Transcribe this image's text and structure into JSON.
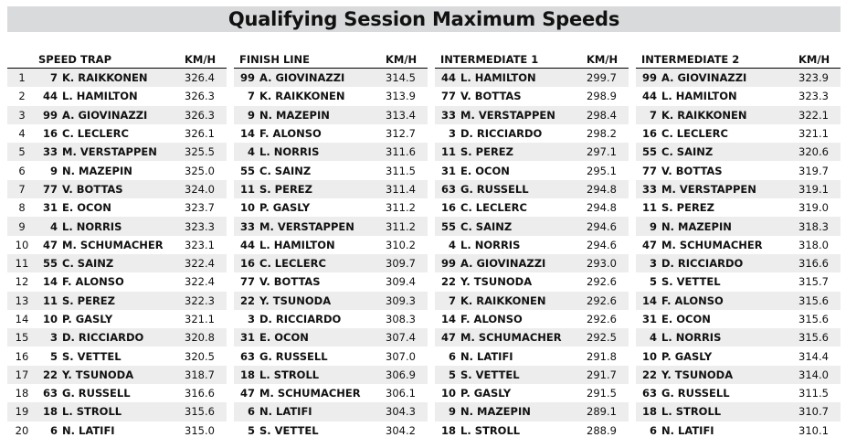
{
  "title": "Qualifying Session Maximum Speeds",
  "positions": [
    "1",
    "2",
    "3",
    "4",
    "5",
    "6",
    "7",
    "8",
    "9",
    "10",
    "11",
    "12",
    "13",
    "14",
    "15",
    "16",
    "17",
    "18",
    "19",
    "20"
  ],
  "sections": [
    {
      "label": "SPEED TRAP",
      "unit": "KM/H",
      "rows": [
        {
          "num": "7",
          "driver": "K. RAIKKONEN",
          "speed": "326.4"
        },
        {
          "num": "44",
          "driver": "L. HAMILTON",
          "speed": "326.3"
        },
        {
          "num": "99",
          "driver": "A. GIOVINAZZI",
          "speed": "326.3"
        },
        {
          "num": "16",
          "driver": "C. LECLERC",
          "speed": "326.1"
        },
        {
          "num": "33",
          "driver": "M. VERSTAPPEN",
          "speed": "325.5"
        },
        {
          "num": "9",
          "driver": "N. MAZEPIN",
          "speed": "325.0"
        },
        {
          "num": "77",
          "driver": "V. BOTTAS",
          "speed": "324.0"
        },
        {
          "num": "31",
          "driver": "E. OCON",
          "speed": "323.7"
        },
        {
          "num": "4",
          "driver": "L. NORRIS",
          "speed": "323.3"
        },
        {
          "num": "47",
          "driver": "M. SCHUMACHER",
          "speed": "323.1"
        },
        {
          "num": "55",
          "driver": "C. SAINZ",
          "speed": "322.4"
        },
        {
          "num": "14",
          "driver": "F. ALONSO",
          "speed": "322.4"
        },
        {
          "num": "11",
          "driver": "S. PEREZ",
          "speed": "322.3"
        },
        {
          "num": "10",
          "driver": "P. GASLY",
          "speed": "321.1"
        },
        {
          "num": "3",
          "driver": "D. RICCIARDO",
          "speed": "320.8"
        },
        {
          "num": "5",
          "driver": "S. VETTEL",
          "speed": "320.5"
        },
        {
          "num": "22",
          "driver": "Y. TSUNODA",
          "speed": "318.7"
        },
        {
          "num": "63",
          "driver": "G. RUSSELL",
          "speed": "316.6"
        },
        {
          "num": "18",
          "driver": "L. STROLL",
          "speed": "315.6"
        },
        {
          "num": "6",
          "driver": "N. LATIFI",
          "speed": "315.0"
        }
      ]
    },
    {
      "label": "FINISH LINE",
      "unit": "KM/H",
      "rows": [
        {
          "num": "99",
          "driver": "A. GIOVINAZZI",
          "speed": "314.5"
        },
        {
          "num": "7",
          "driver": "K. RAIKKONEN",
          "speed": "313.9"
        },
        {
          "num": "9",
          "driver": "N. MAZEPIN",
          "speed": "313.4"
        },
        {
          "num": "14",
          "driver": "F. ALONSO",
          "speed": "312.7"
        },
        {
          "num": "4",
          "driver": "L. NORRIS",
          "speed": "311.6"
        },
        {
          "num": "55",
          "driver": "C. SAINZ",
          "speed": "311.5"
        },
        {
          "num": "11",
          "driver": "S. PEREZ",
          "speed": "311.4"
        },
        {
          "num": "10",
          "driver": "P. GASLY",
          "speed": "311.2"
        },
        {
          "num": "33",
          "driver": "M. VERSTAPPEN",
          "speed": "311.2"
        },
        {
          "num": "44",
          "driver": "L. HAMILTON",
          "speed": "310.2"
        },
        {
          "num": "16",
          "driver": "C. LECLERC",
          "speed": "309.7"
        },
        {
          "num": "77",
          "driver": "V. BOTTAS",
          "speed": "309.4"
        },
        {
          "num": "22",
          "driver": "Y. TSUNODA",
          "speed": "309.3"
        },
        {
          "num": "3",
          "driver": "D. RICCIARDO",
          "speed": "308.3"
        },
        {
          "num": "31",
          "driver": "E. OCON",
          "speed": "307.4"
        },
        {
          "num": "63",
          "driver": "G. RUSSELL",
          "speed": "307.0"
        },
        {
          "num": "18",
          "driver": "L. STROLL",
          "speed": "306.9"
        },
        {
          "num": "47",
          "driver": "M. SCHUMACHER",
          "speed": "306.1"
        },
        {
          "num": "6",
          "driver": "N. LATIFI",
          "speed": "304.3"
        },
        {
          "num": "5",
          "driver": "S. VETTEL",
          "speed": "304.2"
        }
      ]
    },
    {
      "label": "INTERMEDIATE 1",
      "unit": "KM/H",
      "rows": [
        {
          "num": "44",
          "driver": "L. HAMILTON",
          "speed": "299.7"
        },
        {
          "num": "77",
          "driver": "V. BOTTAS",
          "speed": "298.9"
        },
        {
          "num": "33",
          "driver": "M. VERSTAPPEN",
          "speed": "298.4"
        },
        {
          "num": "3",
          "driver": "D. RICCIARDO",
          "speed": "298.2"
        },
        {
          "num": "11",
          "driver": "S. PEREZ",
          "speed": "297.1"
        },
        {
          "num": "31",
          "driver": "E. OCON",
          "speed": "295.1"
        },
        {
          "num": "63",
          "driver": "G. RUSSELL",
          "speed": "294.8"
        },
        {
          "num": "16",
          "driver": "C. LECLERC",
          "speed": "294.8"
        },
        {
          "num": "55",
          "driver": "C. SAINZ",
          "speed": "294.6"
        },
        {
          "num": "4",
          "driver": "L. NORRIS",
          "speed": "294.6"
        },
        {
          "num": "99",
          "driver": "A. GIOVINAZZI",
          "speed": "293.0"
        },
        {
          "num": "22",
          "driver": "Y. TSUNODA",
          "speed": "292.6"
        },
        {
          "num": "7",
          "driver": "K. RAIKKONEN",
          "speed": "292.6"
        },
        {
          "num": "14",
          "driver": "F. ALONSO",
          "speed": "292.6"
        },
        {
          "num": "47",
          "driver": "M. SCHUMACHER",
          "speed": "292.5"
        },
        {
          "num": "6",
          "driver": "N. LATIFI",
          "speed": "291.8"
        },
        {
          "num": "5",
          "driver": "S. VETTEL",
          "speed": "291.7"
        },
        {
          "num": "10",
          "driver": "P. GASLY",
          "speed": "291.5"
        },
        {
          "num": "9",
          "driver": "N. MAZEPIN",
          "speed": "289.1"
        },
        {
          "num": "18",
          "driver": "L. STROLL",
          "speed": "288.9"
        }
      ]
    },
    {
      "label": "INTERMEDIATE 2",
      "unit": "KM/H",
      "rows": [
        {
          "num": "99",
          "driver": "A. GIOVINAZZI",
          "speed": "323.9"
        },
        {
          "num": "44",
          "driver": "L. HAMILTON",
          "speed": "323.3"
        },
        {
          "num": "7",
          "driver": "K. RAIKKONEN",
          "speed": "322.1"
        },
        {
          "num": "16",
          "driver": "C. LECLERC",
          "speed": "321.1"
        },
        {
          "num": "55",
          "driver": "C. SAINZ",
          "speed": "320.6"
        },
        {
          "num": "77",
          "driver": "V. BOTTAS",
          "speed": "319.7"
        },
        {
          "num": "33",
          "driver": "M. VERSTAPPEN",
          "speed": "319.1"
        },
        {
          "num": "11",
          "driver": "S. PEREZ",
          "speed": "319.0"
        },
        {
          "num": "9",
          "driver": "N. MAZEPIN",
          "speed": "318.3"
        },
        {
          "num": "47",
          "driver": "M. SCHUMACHER",
          "speed": "318.0"
        },
        {
          "num": "3",
          "driver": "D. RICCIARDO",
          "speed": "316.6"
        },
        {
          "num": "5",
          "driver": "S. VETTEL",
          "speed": "315.7"
        },
        {
          "num": "14",
          "driver": "F. ALONSO",
          "speed": "315.6"
        },
        {
          "num": "31",
          "driver": "E. OCON",
          "speed": "315.6"
        },
        {
          "num": "4",
          "driver": "L. NORRIS",
          "speed": "315.6"
        },
        {
          "num": "10",
          "driver": "P. GASLY",
          "speed": "314.4"
        },
        {
          "num": "22",
          "driver": "Y. TSUNODA",
          "speed": "314.0"
        },
        {
          "num": "63",
          "driver": "G. RUSSELL",
          "speed": "311.5"
        },
        {
          "num": "18",
          "driver": "L. STROLL",
          "speed": "310.7"
        },
        {
          "num": "6",
          "driver": "N. LATIFI",
          "speed": "310.1"
        }
      ]
    }
  ]
}
